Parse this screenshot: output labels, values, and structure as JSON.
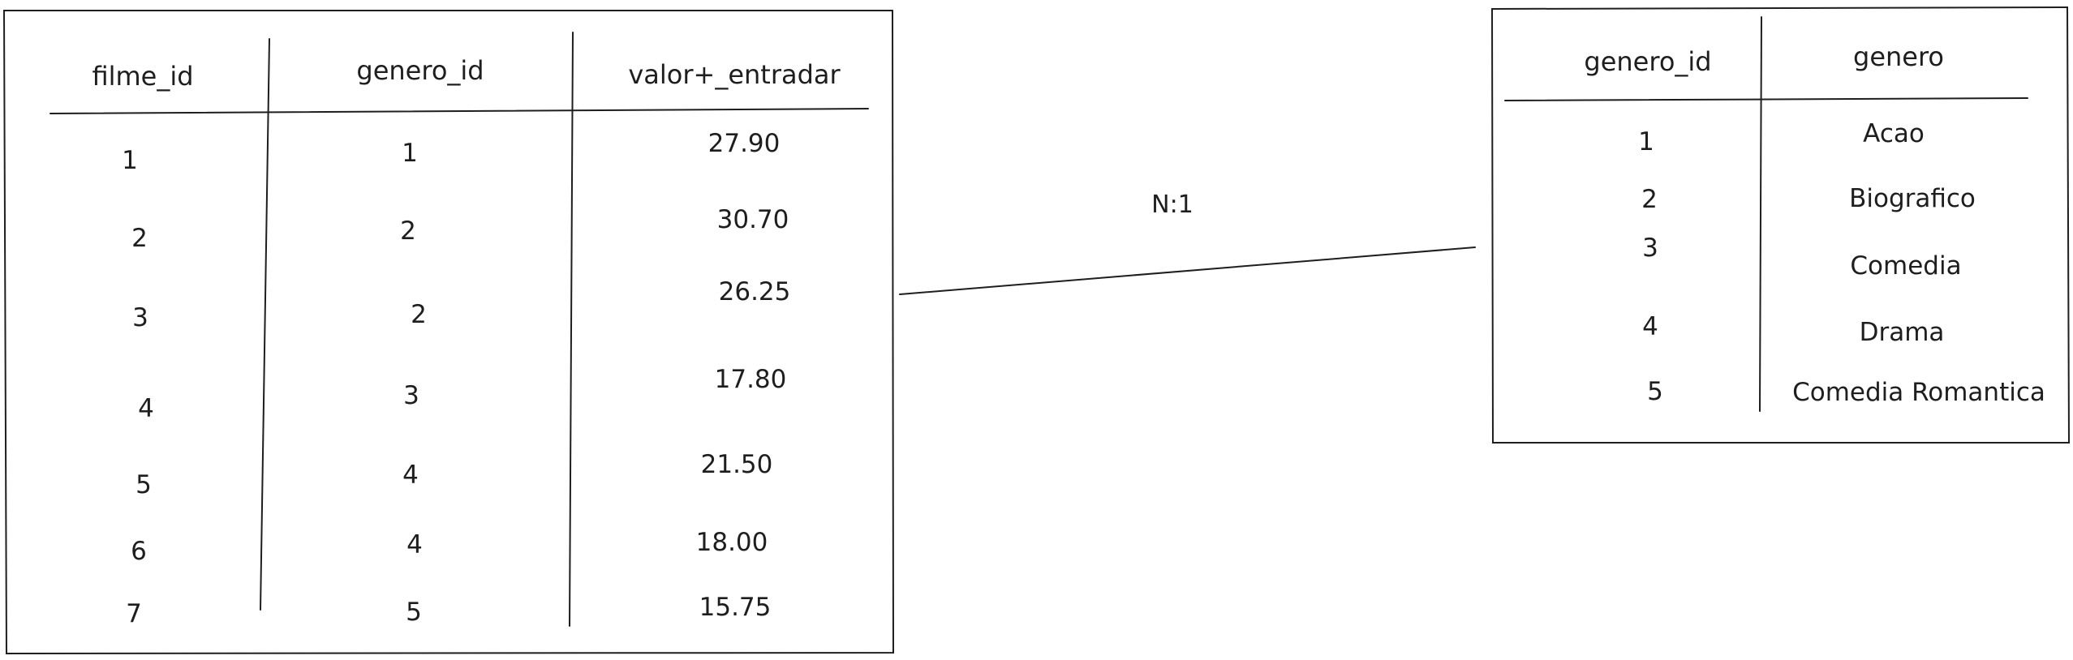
{
  "diagram": {
    "relationship_label": "N:1",
    "left_table": {
      "columns": [
        "filme_id",
        "genero_id",
        "valor+_entradar"
      ],
      "rows": [
        [
          "1",
          "1",
          "27.90"
        ],
        [
          "2",
          "2",
          "30.70"
        ],
        [
          "3",
          "2",
          "26.25"
        ],
        [
          "4",
          "3",
          "17.80"
        ],
        [
          "5",
          "4",
          "21.50"
        ],
        [
          "6",
          "4",
          "18.00"
        ],
        [
          "7",
          "5",
          "15.75"
        ]
      ]
    },
    "right_table": {
      "columns": [
        "genero_id",
        "genero"
      ],
      "rows": [
        [
          "1",
          "Acao"
        ],
        [
          "2",
          "Biografico"
        ],
        [
          "3",
          "Comedia"
        ],
        [
          "4",
          "Drama"
        ],
        [
          "5",
          "Comedia Romantica"
        ]
      ]
    }
  }
}
